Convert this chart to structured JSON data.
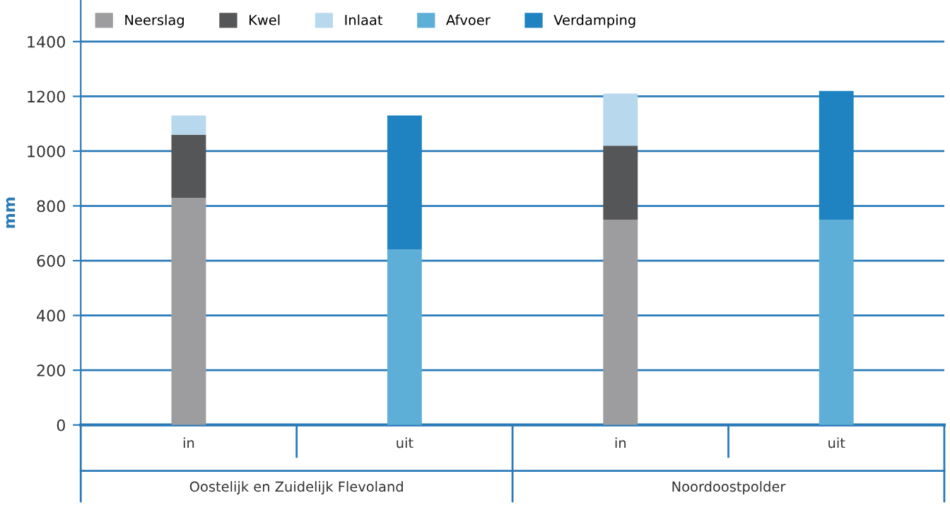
{
  "chart_data": {
    "type": "bar",
    "stacked": true,
    "categories": [
      "in",
      "uit",
      "in",
      "uit"
    ],
    "series": [
      {
        "name": "Neerslag",
        "color": "#9d9d9f",
        "values": [
          830,
          null,
          750,
          null
        ]
      },
      {
        "name": "Kwel",
        "color": "#555658",
        "values": [
          230,
          null,
          270,
          null
        ]
      },
      {
        "name": "Inlaat",
        "color": "#b8d8ee",
        "values": [
          70,
          null,
          190,
          null
        ]
      },
      {
        "name": "Afvoer",
        "color": "#5eafd8",
        "values": [
          null,
          640,
          null,
          750
        ]
      },
      {
        "name": "Verdamping",
        "color": "#1f83c1",
        "values": [
          null,
          490,
          null,
          470
        ]
      }
    ],
    "annotations": [
      "Oostelijk en Zuidelijk Flevoland",
      "Noordoostpolder"
    ],
    "ylabel": "mm",
    "ylim": [
      0,
      1550
    ],
    "yticks": [
      0,
      200,
      400,
      600,
      800,
      1000,
      1200,
      1400
    ],
    "grid": "y",
    "legend": "top"
  }
}
